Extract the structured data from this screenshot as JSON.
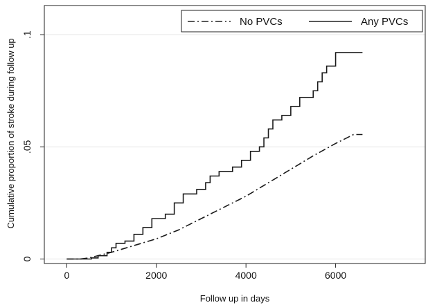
{
  "chart_data": {
    "type": "line",
    "title": "",
    "xlabel": "Follow up in days",
    "ylabel": "Cumulative proportion of stroke during follow up",
    "xlim": [
      -500,
      8000
    ],
    "ylim": [
      -0.002,
      0.113
    ],
    "xticks": [
      0,
      2000,
      4000,
      6000
    ],
    "xtick_labels": [
      "0",
      "2000",
      "4000",
      "6000"
    ],
    "yticks": [
      0,
      0.05,
      0.1
    ],
    "ytick_labels": [
      "0",
      ".05",
      ".1"
    ],
    "grid": "horizontal",
    "legend_position": "top-right",
    "series": [
      {
        "name": "No PVCs",
        "style": "dash-dot",
        "step": false,
        "points": [
          [
            0,
            0
          ],
          [
            300,
            0
          ],
          [
            500,
            0.0005
          ],
          [
            800,
            0.002
          ],
          [
            1000,
            0.003
          ],
          [
            1500,
            0.006
          ],
          [
            2000,
            0.009
          ],
          [
            2500,
            0.013
          ],
          [
            3000,
            0.018
          ],
          [
            3500,
            0.023
          ],
          [
            4000,
            0.028
          ],
          [
            4500,
            0.034
          ],
          [
            5000,
            0.04
          ],
          [
            5500,
            0.046
          ],
          [
            6000,
            0.0515
          ],
          [
            6400,
            0.0555
          ],
          [
            6600,
            0.0555
          ]
        ]
      },
      {
        "name": "Any PVCs",
        "style": "solid",
        "step": true,
        "points": [
          [
            0,
            0
          ],
          [
            400,
            0
          ],
          [
            550,
            0.0005
          ],
          [
            700,
            0.0015
          ],
          [
            900,
            0.003
          ],
          [
            1000,
            0.005
          ],
          [
            1100,
            0.007
          ],
          [
            1300,
            0.008
          ],
          [
            1500,
            0.011
          ],
          [
            1700,
            0.014
          ],
          [
            1900,
            0.018
          ],
          [
            2200,
            0.02
          ],
          [
            2400,
            0.025
          ],
          [
            2600,
            0.029
          ],
          [
            2900,
            0.031
          ],
          [
            3100,
            0.034
          ],
          [
            3200,
            0.037
          ],
          [
            3400,
            0.039
          ],
          [
            3700,
            0.041
          ],
          [
            3900,
            0.044
          ],
          [
            4100,
            0.048
          ],
          [
            4300,
            0.05
          ],
          [
            4400,
            0.054
          ],
          [
            4500,
            0.058
          ],
          [
            4600,
            0.062
          ],
          [
            4800,
            0.064
          ],
          [
            5000,
            0.068
          ],
          [
            5200,
            0.072
          ],
          [
            5500,
            0.075
          ],
          [
            5600,
            0.079
          ],
          [
            5700,
            0.083
          ],
          [
            5800,
            0.086
          ],
          [
            6000,
            0.092
          ],
          [
            6600,
            0.092
          ]
        ]
      }
    ]
  }
}
